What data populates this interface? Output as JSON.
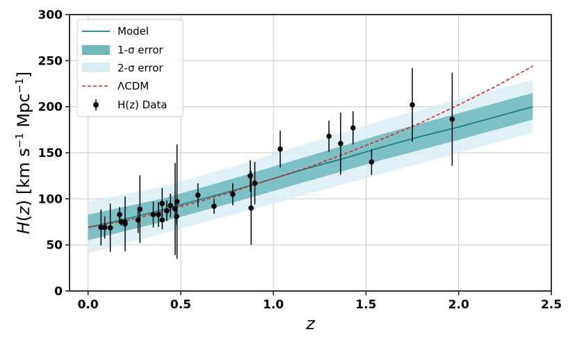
{
  "chart_data": {
    "type": "line",
    "xlabel": "z",
    "ylabel": "H(z) [km s⁻¹ Mpc⁻¹]",
    "ylabel_parts": {
      "H": "H",
      "open": "(",
      "z": "z",
      "close": ")",
      "units_main": " [km s",
      "sup1": "−1",
      "mpc": " Mpc",
      "sup2": "−1",
      "end": "]"
    },
    "xlim": [
      -0.1,
      2.5
    ],
    "ylim": [
      0,
      300
    ],
    "xticks": [
      0.0,
      0.5,
      1.0,
      1.5,
      2.0,
      2.5
    ],
    "xtick_labels": [
      "0.0",
      "0.5",
      "1.0",
      "1.5",
      "2.0",
      "2.5"
    ],
    "yticks": [
      0,
      50,
      100,
      150,
      200,
      250,
      300
    ],
    "ytick_labels": [
      "0",
      "50",
      "100",
      "150",
      "200",
      "250",
      "300"
    ],
    "grid": true,
    "legend_placement": "top-left",
    "colors": {
      "model": "#1a8080",
      "band1": "#6bb8bd",
      "band2": "#d7edf2",
      "lcdm": "#e8231a",
      "data": "#000000",
      "grid": "#c8c8c8"
    },
    "series": [
      {
        "name": "Model",
        "kind": "line",
        "x": [
          0.0,
          0.2,
          0.4,
          0.6,
          0.8,
          1.0,
          1.2,
          1.4,
          1.6,
          1.8,
          2.0,
          2.2,
          2.4
        ],
        "y": [
          69,
          78,
          88,
          99,
          110,
          122,
          134,
          145,
          157,
          168,
          178,
          189,
          200
        ]
      },
      {
        "name": "1-σ error",
        "kind": "band",
        "x": [
          0.0,
          0.4,
          0.8,
          1.2,
          1.6,
          2.0,
          2.4
        ],
        "lower": [
          55,
          75,
          97,
          120,
          143,
          164,
          186
        ],
        "upper": [
          83,
          100,
          123,
          147,
          171,
          193,
          215
        ]
      },
      {
        "name": "2-σ error",
        "kind": "band",
        "x": [
          0.0,
          0.4,
          0.8,
          1.2,
          1.6,
          2.0,
          2.4
        ],
        "lower": [
          41,
          62,
          84,
          106,
          128,
          150,
          172
        ],
        "upper": [
          97,
          113,
          136,
          161,
          186,
          208,
          229
        ]
      },
      {
        "name": "ΛCDM",
        "kind": "dashed-line",
        "x": [
          0.0,
          0.2,
          0.4,
          0.6,
          0.8,
          1.0,
          1.2,
          1.4,
          1.6,
          1.8,
          2.0,
          2.2,
          2.4
        ],
        "y": [
          69,
          76,
          86,
          97,
          109,
          122,
          135,
          150,
          166,
          183,
          202,
          222,
          244
        ]
      },
      {
        "name": "H(z) Data",
        "kind": "errorbar",
        "points": [
          {
            "z": 0.07,
            "H": 69,
            "err": 19.6
          },
          {
            "z": 0.09,
            "H": 69,
            "err": 12
          },
          {
            "z": 0.12,
            "H": 68.6,
            "err": 26.2
          },
          {
            "z": 0.17,
            "H": 83,
            "err": 8
          },
          {
            "z": 0.179,
            "H": 75,
            "err": 4
          },
          {
            "z": 0.199,
            "H": 75,
            "err": 5
          },
          {
            "z": 0.2,
            "H": 72.9,
            "err": 29.6
          },
          {
            "z": 0.27,
            "H": 77,
            "err": 14
          },
          {
            "z": 0.28,
            "H": 88.8,
            "err": 36.6
          },
          {
            "z": 0.352,
            "H": 83,
            "err": 14
          },
          {
            "z": 0.38,
            "H": 83,
            "err": 13.5
          },
          {
            "z": 0.4,
            "H": 95,
            "err": 17
          },
          {
            "z": 0.4004,
            "H": 77,
            "err": 10.2
          },
          {
            "z": 0.425,
            "H": 87.1,
            "err": 11.2
          },
          {
            "z": 0.445,
            "H": 92.8,
            "err": 12.9
          },
          {
            "z": 0.47,
            "H": 89,
            "err": 50
          },
          {
            "z": 0.4783,
            "H": 80.9,
            "err": 9
          },
          {
            "z": 0.48,
            "H": 97,
            "err": 62
          },
          {
            "z": 0.593,
            "H": 104,
            "err": 13
          },
          {
            "z": 0.68,
            "H": 92,
            "err": 8
          },
          {
            "z": 0.781,
            "H": 105,
            "err": 12
          },
          {
            "z": 0.875,
            "H": 125,
            "err": 17
          },
          {
            "z": 0.88,
            "H": 90,
            "err": 40
          },
          {
            "z": 0.9,
            "H": 117,
            "err": 23
          },
          {
            "z": 1.037,
            "H": 154,
            "err": 20
          },
          {
            "z": 1.3,
            "H": 168,
            "err": 17
          },
          {
            "z": 1.363,
            "H": 160,
            "err": 33.6
          },
          {
            "z": 1.43,
            "H": 177,
            "err": 18
          },
          {
            "z": 1.53,
            "H": 140,
            "err": 14
          },
          {
            "z": 1.75,
            "H": 202,
            "err": 40
          },
          {
            "z": 1.965,
            "H": 186.5,
            "err": 50.4
          }
        ]
      }
    ],
    "legend": [
      "Model",
      "1-σ error",
      "2-σ error",
      "ΛCDM",
      "H(z) Data"
    ]
  }
}
